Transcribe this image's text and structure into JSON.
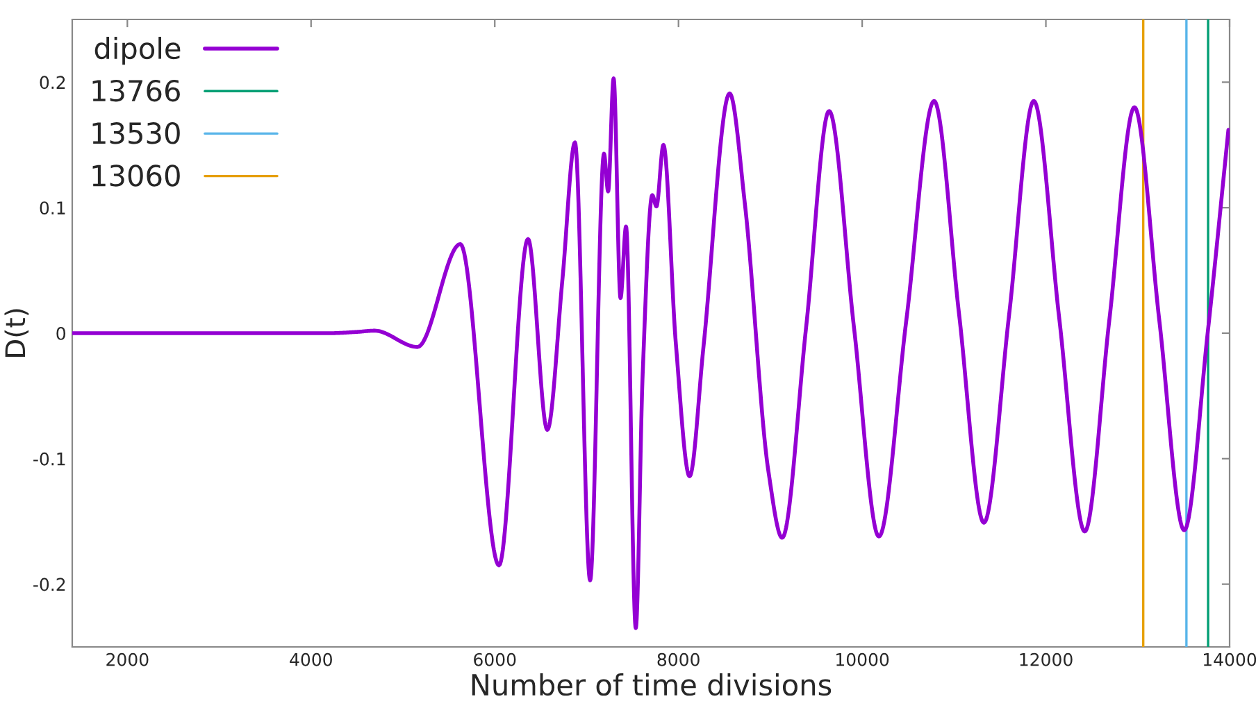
{
  "chart_data": {
    "type": "line",
    "xlabel": "Number of time divisions",
    "ylabel": "D(t)",
    "xlim": [
      1400,
      14000
    ],
    "ylim": [
      -0.25,
      0.25
    ],
    "xticks": [
      2000,
      4000,
      6000,
      8000,
      10000,
      12000,
      14000
    ],
    "yticks": [
      {
        "value": -0.2,
        "label": "-0.2"
      },
      {
        "value": -0.1,
        "label": "-0.1"
      },
      0,
      0.1,
      0.2
    ],
    "grid": false,
    "legend": "top left",
    "marker": "none",
    "line_style": "solid",
    "series": [
      {
        "name": "dipole",
        "color": "#9400d3",
        "x": [
          1400,
          4200,
          4500,
          4692,
          5158,
          5625,
          6046,
          6362,
          6572,
          6738,
          6873,
          7038,
          7189,
          7234,
          7294,
          7369,
          7429,
          7535,
          7610,
          7715,
          7760,
          7836,
          7971,
          8121,
          8272,
          8557,
          8723,
          8979,
          9129,
          9390,
          9640,
          9910,
          10182,
          10480,
          10783,
          11055,
          11325,
          11600,
          11868,
          12145,
          12423,
          12690,
          12964,
          13235,
          13506,
          13761,
          13987
        ],
        "values": [
          0,
          0,
          0.001,
          0.002,
          -0.011,
          0.071,
          -0.185,
          0.075,
          -0.077,
          0.044,
          0.152,
          -0.197,
          0.143,
          0.113,
          0.203,
          0.028,
          0.085,
          -0.235,
          -0.033,
          0.11,
          0.101,
          0.15,
          -0.008,
          -0.114,
          -0.011,
          0.191,
          0.103,
          -0.11,
          -0.163,
          0.005,
          0.177,
          0.005,
          -0.162,
          0.01,
          0.185,
          0.015,
          -0.151,
          0.015,
          0.185,
          0.012,
          -0.158,
          0.01,
          0.18,
          0.01,
          -0.157,
          0,
          0.162
        ]
      },
      {
        "name": "13766",
        "color": "#009e73",
        "x": [
          13766,
          13766
        ],
        "values": [
          -0.25,
          0.25
        ]
      },
      {
        "name": "13530",
        "color": "#56b4e9",
        "x": [
          13530,
          13530
        ],
        "values": [
          -0.25,
          0.25
        ]
      },
      {
        "name": "13060",
        "color": "#e69f00",
        "x": [
          13060,
          13060
        ],
        "values": [
          -0.25,
          0.25
        ]
      }
    ]
  }
}
